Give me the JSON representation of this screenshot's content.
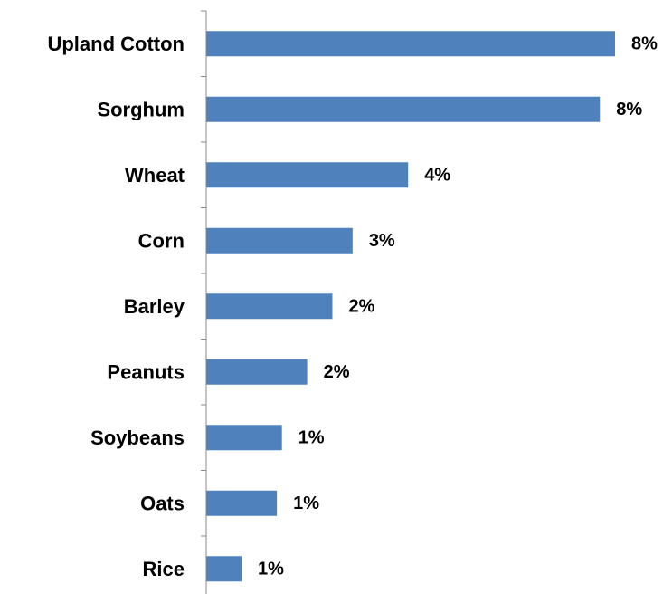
{
  "chart_data": {
    "type": "bar",
    "orientation": "horizontal",
    "categories": [
      "Upland Cotton",
      "Sorghum",
      "Wheat",
      "Corn",
      "Barley",
      "Peanuts",
      "Soybeans",
      "Oats",
      "Rice"
    ],
    "values": [
      8.1,
      7.8,
      4.0,
      2.9,
      2.5,
      2.0,
      1.5,
      1.4,
      0.7
    ],
    "value_labels": [
      "8%",
      "8%",
      "4%",
      "3%",
      "2%",
      "2%",
      "1%",
      "1%",
      "1%"
    ],
    "bar_color": "#4f81bd",
    "xlim": [
      0,
      8.5
    ],
    "grid": false,
    "legend": "none"
  }
}
